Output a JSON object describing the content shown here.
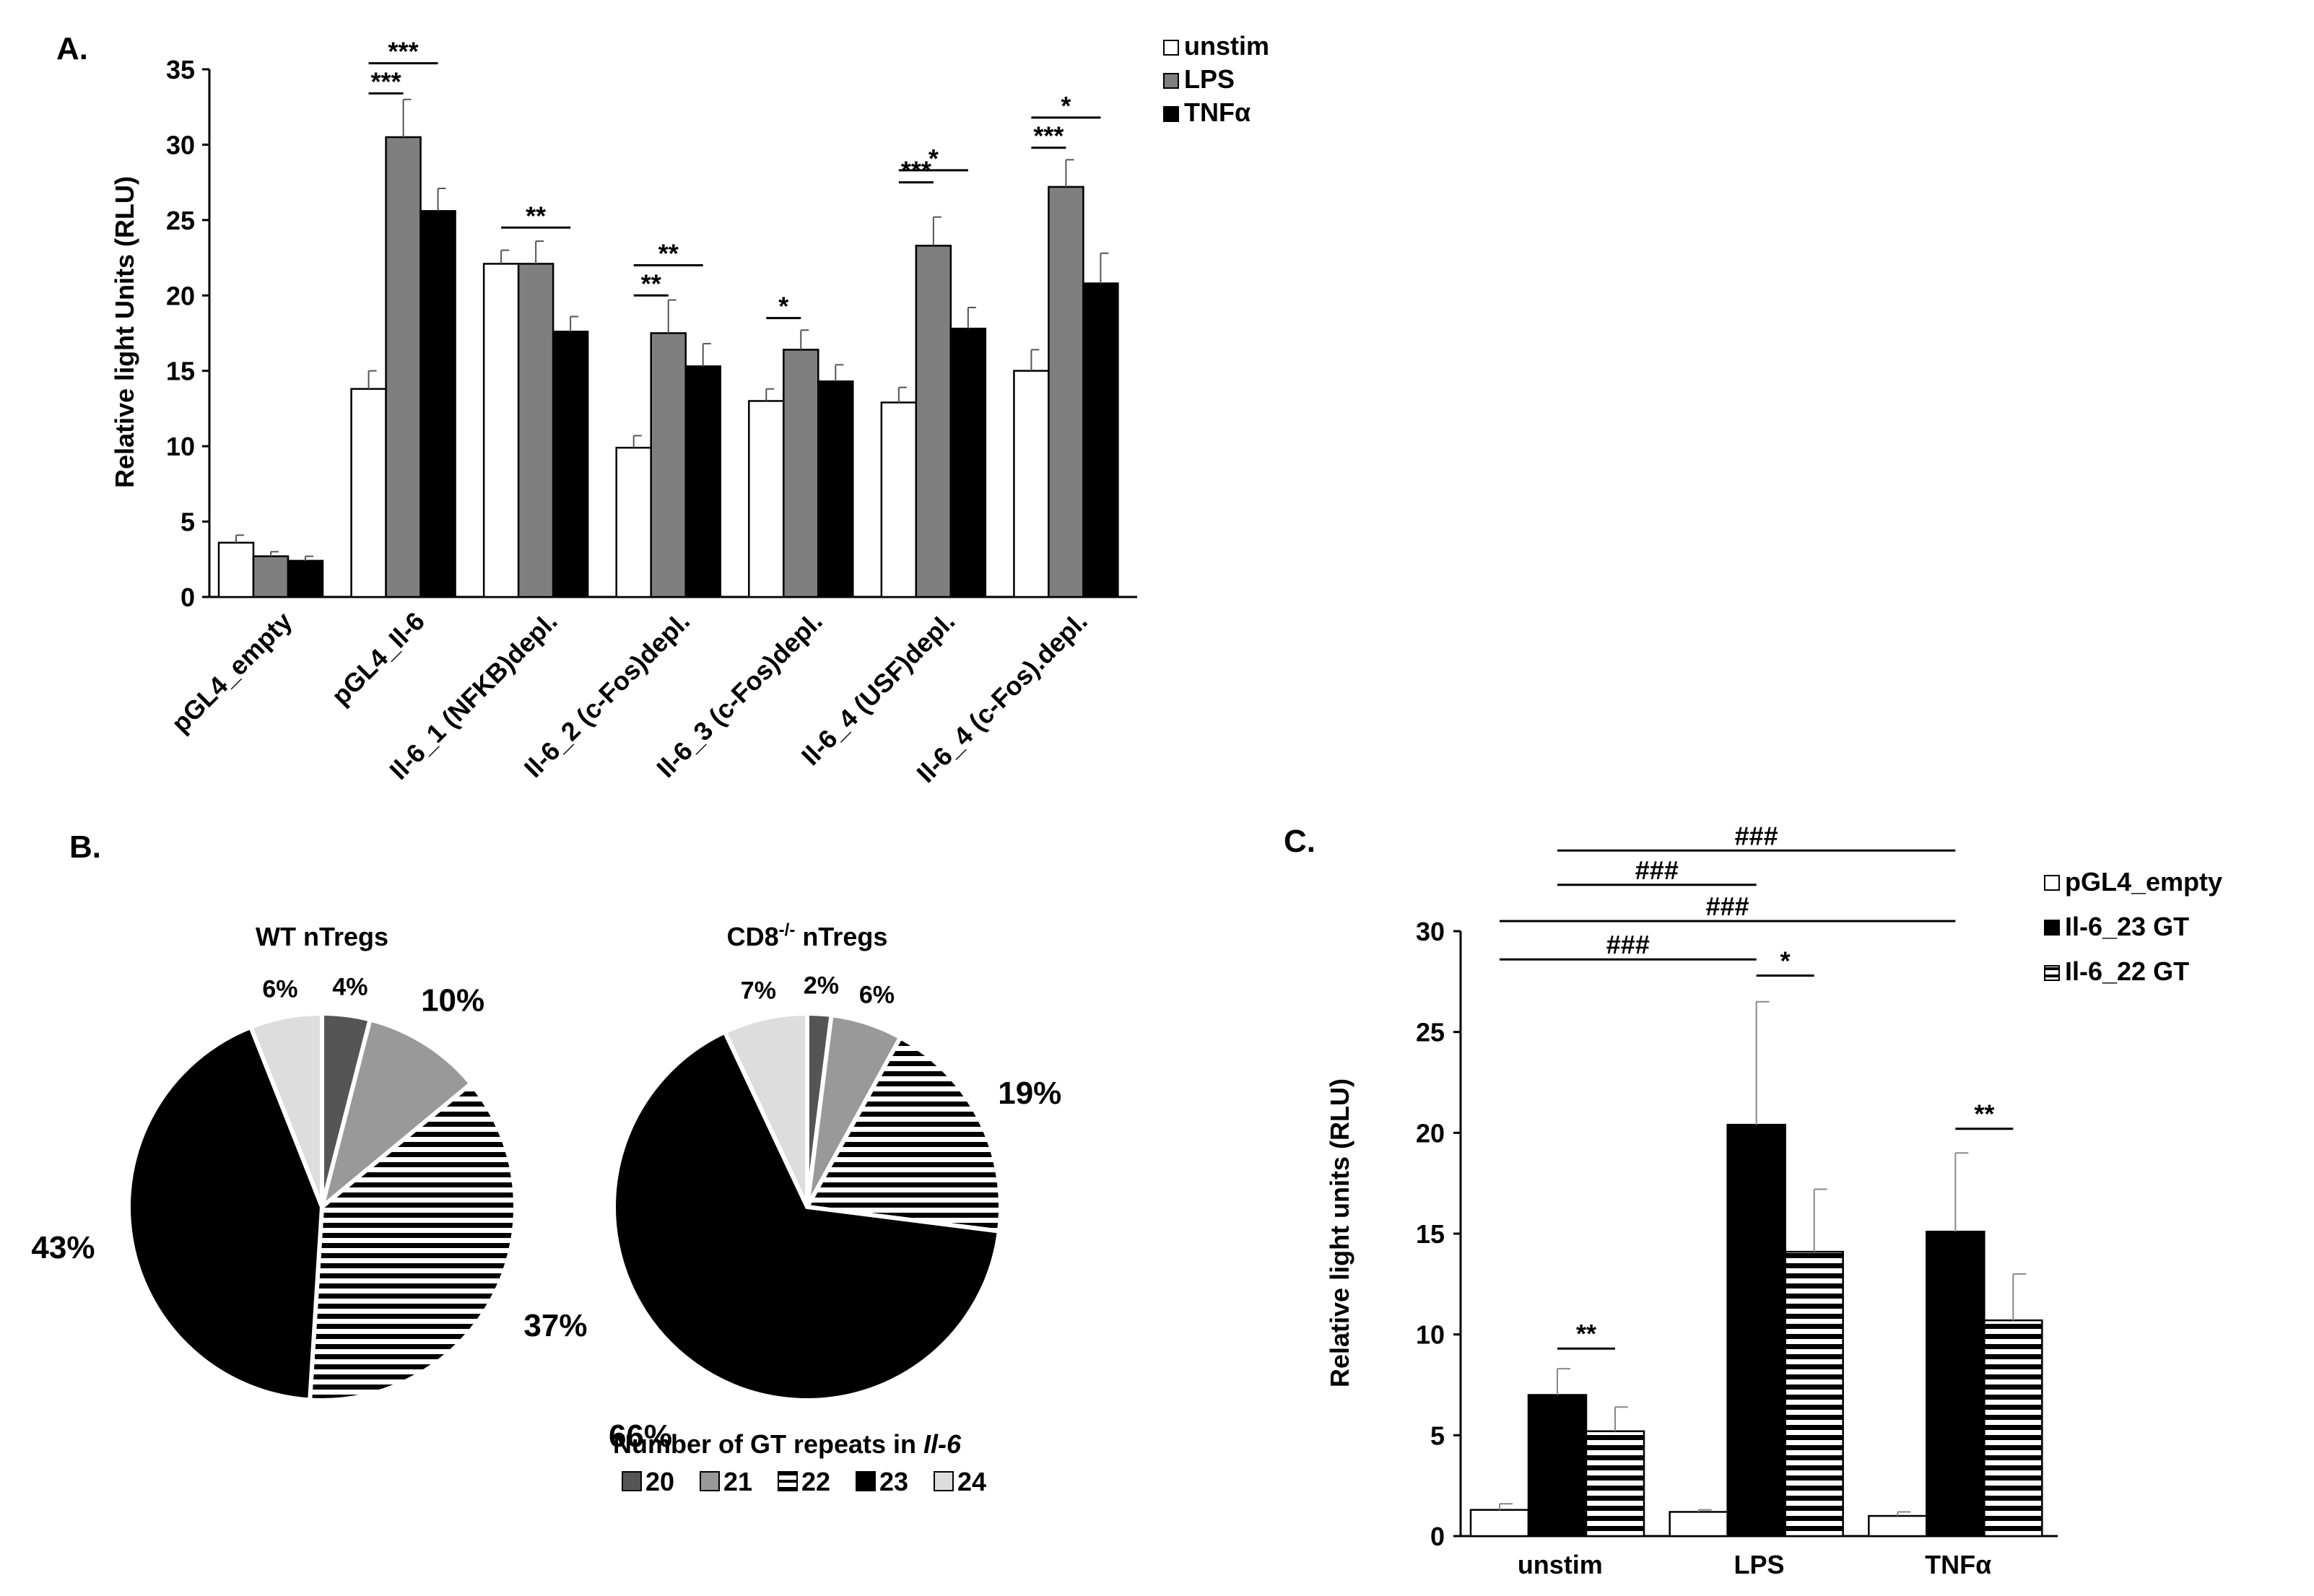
{
  "chart_data": [
    {
      "panel": "A.",
      "type": "bar",
      "ylabel": "Relative light Units (RLU)",
      "ylim": [
        0,
        35
      ],
      "yticks": [
        0,
        5,
        10,
        15,
        20,
        25,
        30,
        35
      ],
      "categories": [
        "pGL4_empty",
        "pGL4_Il-6",
        "Il-6_1 (NFKB)depl.",
        "Il-6_2 (c-Fos)depl.",
        "Il-6_3 (c-Fos)depl.",
        "Il-6_4 (USF)depl.",
        "Il-6_4 (c-Fos).depl."
      ],
      "series": [
        {
          "name": "unstim",
          "color": "#ffffff",
          "values": [
            3.6,
            13.8,
            22.1,
            9.9,
            13.0,
            12.9,
            15.0
          ],
          "errors": [
            0.5,
            1.2,
            0.9,
            0.8,
            0.8,
            1.0,
            1.4
          ]
        },
        {
          "name": "LPS",
          "color": "#7f7f7f",
          "values": [
            2.7,
            30.5,
            22.1,
            17.5,
            16.4,
            23.3,
            27.2
          ],
          "errors": [
            0.3,
            2.5,
            1.5,
            2.2,
            1.3,
            1.9,
            1.8
          ]
        },
        {
          "name": "TNFα",
          "color": "#000000",
          "values": [
            2.4,
            25.6,
            17.6,
            15.3,
            14.3,
            17.8,
            20.8
          ],
          "errors": [
            0.3,
            1.5,
            1.0,
            1.5,
            1.1,
            1.4,
            2.0
          ]
        }
      ],
      "annotations": [
        {
          "text": "***",
          "category": 1,
          "from": 0,
          "to": 1,
          "y": 33.4
        },
        {
          "text": "***",
          "category": 1,
          "from": 0,
          "to": 2,
          "y": 35.4
        },
        {
          "text": "**",
          "category": 2,
          "from": 0,
          "to": 2,
          "y": 24.5
        },
        {
          "text": "**",
          "category": 3,
          "from": 0,
          "to": 1,
          "y": 20.0
        },
        {
          "text": "**",
          "category": 3,
          "from": 0,
          "to": 2,
          "y": 22.0
        },
        {
          "text": "*",
          "category": 4,
          "from": 0,
          "to": 1,
          "y": 18.5
        },
        {
          "text": "***",
          "category": 5,
          "from": 0,
          "to": 1,
          "y": 27.5
        },
        {
          "text": "*",
          "category": 5,
          "from": 0,
          "to": 2,
          "y": 28.3
        },
        {
          "text": "***",
          "category": 6,
          "from": 0,
          "to": 1,
          "y": 29.8
        },
        {
          "text": "*",
          "category": 6,
          "from": 0,
          "to": 2,
          "y": 31.8
        }
      ]
    },
    {
      "panel": "B.",
      "type": "pie",
      "title": "WT nTregs",
      "labels": [
        "20",
        "21",
        "22",
        "23",
        "24"
      ],
      "values": [
        4,
        10,
        37,
        43,
        6
      ],
      "value_labels": [
        "4%",
        "10%",
        "37%",
        "43%",
        "6%"
      ]
    },
    {
      "panel": "B.",
      "type": "pie",
      "title_main": "CD8",
      "title_sup": "-/-",
      "title_rest": " nTregs",
      "labels": [
        "20",
        "21",
        "22",
        "23",
        "24"
      ],
      "values": [
        2,
        6,
        19,
        66,
        7
      ],
      "value_labels": [
        "2%",
        "6%",
        "19%",
        "66%",
        "7%"
      ]
    },
    {
      "panel": "C.",
      "type": "bar",
      "ylabel": "Relative light units (RLU)",
      "ylim": [
        0,
        30
      ],
      "yticks": [
        0,
        5,
        10,
        15,
        20,
        25,
        30
      ],
      "categories": [
        "unstim",
        "LPS",
        "TNFα"
      ],
      "series": [
        {
          "name": "pGL4_empty",
          "pattern": "white",
          "values": [
            1.3,
            1.2,
            1.0
          ],
          "errors": [
            0.3,
            0.1,
            0.2
          ]
        },
        {
          "name": "Il-6_23 GT",
          "pattern": "black",
          "values": [
            7.0,
            20.4,
            15.1
          ],
          "errors": [
            1.3,
            6.1,
            3.9
          ]
        },
        {
          "name": "Il-6_22 GT",
          "pattern": "hstripe",
          "values": [
            5.2,
            14.1,
            10.7
          ],
          "errors": [
            1.2,
            3.1,
            2.3
          ]
        }
      ],
      "annotations": [
        {
          "text": "**",
          "type": "bracket",
          "c1": 0,
          "s1": 1,
          "c2": 0,
          "s2": 2,
          "y": 9.3
        },
        {
          "text": "*",
          "type": "bracket",
          "c1": 1,
          "s1": 1,
          "c2": 1,
          "s2": 2,
          "y": 27.8
        },
        {
          "text": "**",
          "type": "bracket",
          "c1": 2,
          "s1": 1,
          "c2": 2,
          "s2": 2,
          "y": 20.2
        },
        {
          "text": "###",
          "type": "line",
          "c1": 0,
          "s1": 0,
          "c2": 1,
          "s2": 1,
          "y": 28.6
        },
        {
          "text": "###",
          "type": "line",
          "c1": 0,
          "s1": 0,
          "c2": 2,
          "s2": 1,
          "y": 30.5
        },
        {
          "text": "###",
          "type": "line",
          "c1": 0,
          "s1": 1,
          "c2": 1,
          "s2": 1,
          "y": 32.3
        },
        {
          "text": "###",
          "type": "line",
          "c1": 0,
          "s1": 1,
          "c2": 2,
          "s2": 1,
          "y": 34.0
        }
      ]
    }
  ],
  "legend_b": {
    "title_prefix": "Number of GT repeats in ",
    "title_italic": "Il-6"
  }
}
